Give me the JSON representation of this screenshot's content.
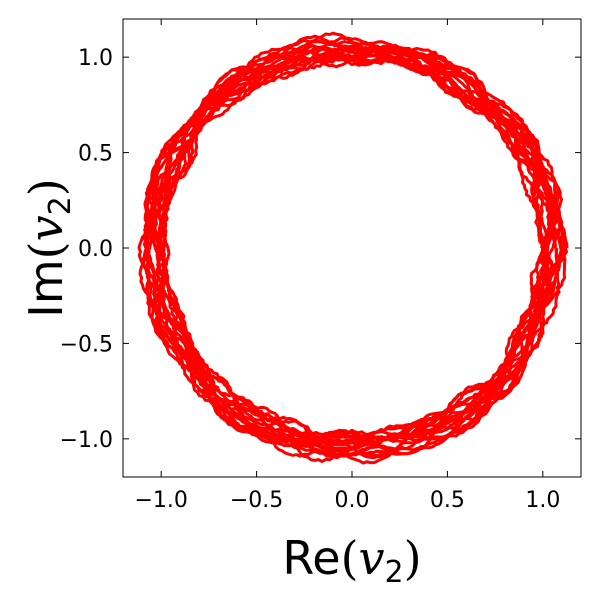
{
  "chart_data": {
    "type": "line",
    "title": "",
    "xlabel": {
      "prefix": "Re",
      "open": "(",
      "var": "v",
      "sub": "2",
      "close": ")"
    },
    "ylabel": {
      "prefix": "Im",
      "open": "(",
      "var": "v",
      "sub": "2",
      "close": ")"
    },
    "xlim": [
      -1.2,
      1.2
    ],
    "ylim": [
      -1.2,
      1.2
    ],
    "xticks": [
      -1.0,
      -0.5,
      0.0,
      0.5,
      1.0
    ],
    "yticks": [
      -1.0,
      -0.5,
      0.0,
      0.5,
      1.0
    ],
    "xtick_labels": [
      "−1.0",
      "−0.5",
      "0.0",
      "0.5",
      "1.0"
    ],
    "ytick_labels": [
      "−1.0",
      "−0.5",
      "0.0",
      "0.5",
      "1.0"
    ],
    "grid": false,
    "legend": "none",
    "series": [
      {
        "color": "#ff0000",
        "description": "closed noisy orbit in the complex plane, radius between about 0.95 and 1.13",
        "radius_range": [
          0.95,
          1.13
        ]
      }
    ]
  }
}
